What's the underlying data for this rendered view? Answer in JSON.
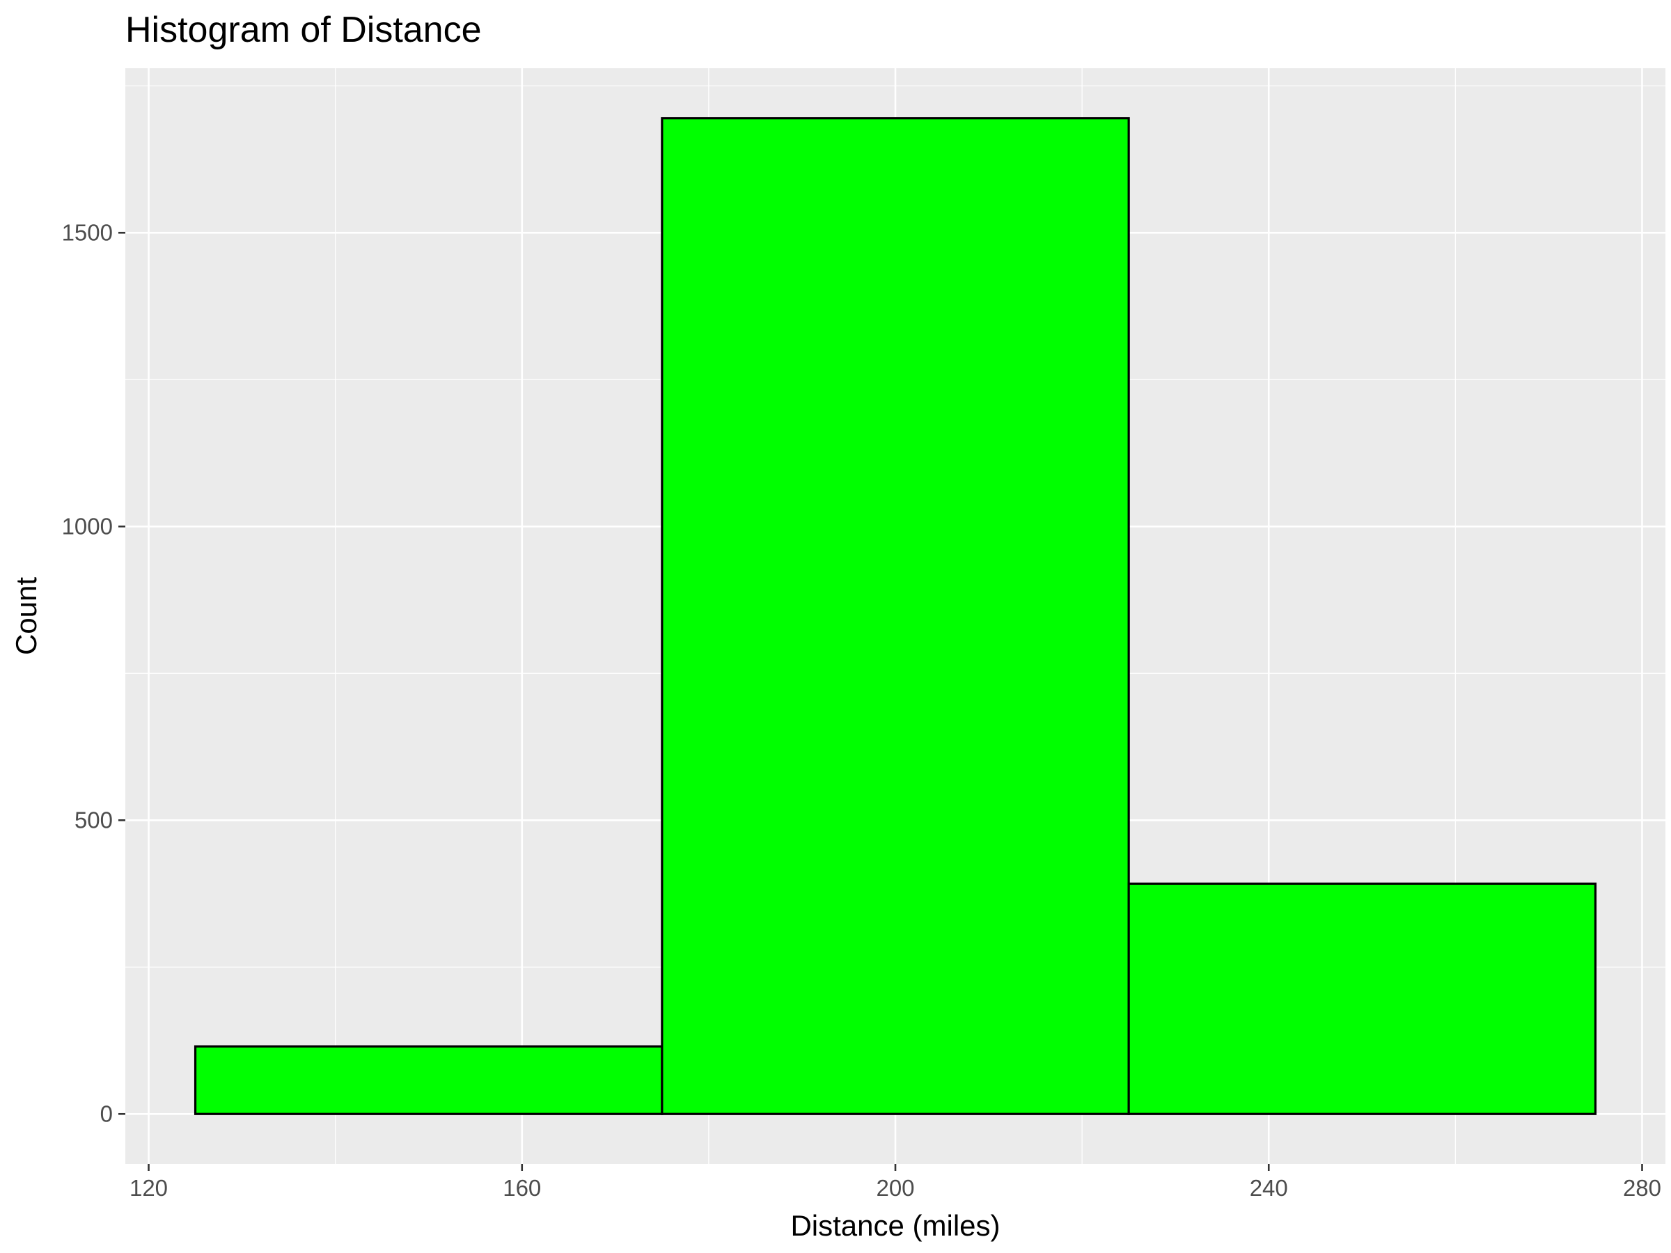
{
  "chart_data": {
    "type": "bar",
    "subtype": "histogram",
    "title": "Histogram of Distance",
    "xlabel": "Distance (miles)",
    "ylabel": "Count",
    "bins": [
      {
        "x_start": 125,
        "x_end": 175,
        "count": 115
      },
      {
        "x_start": 175,
        "x_end": 225,
        "count": 1695
      },
      {
        "x_start": 225,
        "x_end": 275,
        "count": 392
      }
    ],
    "xlim": [
      117.5,
      282.5
    ],
    "ylim": [
      -85,
      1780
    ],
    "x_ticks": [
      120,
      160,
      200,
      240,
      280
    ],
    "y_ticks": [
      0,
      500,
      1000,
      1500
    ],
    "x_tick_labels": [
      "120",
      "160",
      "200",
      "240",
      "280"
    ],
    "y_tick_labels": [
      "0",
      "500",
      "1000",
      "1500"
    ],
    "grid": true,
    "colors": {
      "panel_background": "#ebebeb",
      "grid_major": "#ffffff",
      "bar_fill": "#00ff00",
      "bar_outline": "#000000",
      "tick_text": "#4d4d4d",
      "axis_title": "#000000"
    }
  }
}
